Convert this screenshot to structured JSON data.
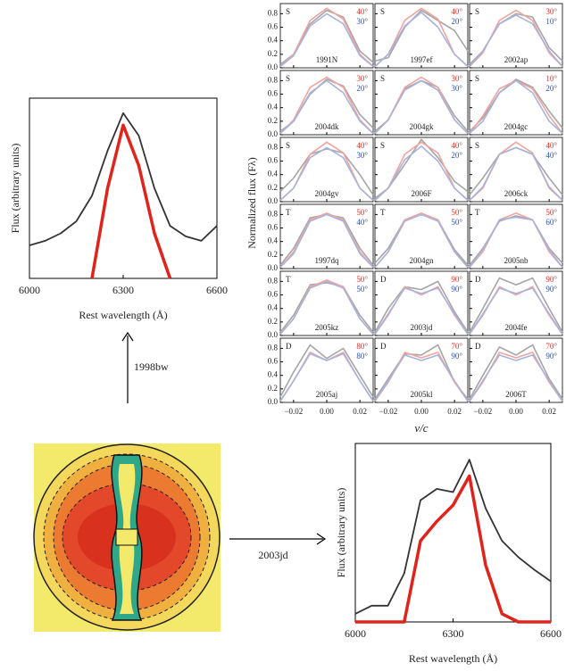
{
  "chart_data": [
    {
      "type": "line",
      "xlabel": "Rest wavelength (Å)",
      "ylabel": "Flux (arbitrary units)",
      "xlim": [
        6000,
        6600
      ],
      "xticks": [
        6000,
        6300,
        6600
      ],
      "ylim": [
        0,
        1.2
      ],
      "x": [
        6000,
        6050,
        6100,
        6150,
        6200,
        6250,
        6300,
        6350,
        6400,
        6450,
        6500,
        6550,
        6600
      ],
      "series": [
        {
          "color": "#333333",
          "values": [
            0.22,
            0.25,
            0.3,
            0.38,
            0.55,
            0.85,
            1.1,
            0.95,
            0.6,
            0.35,
            0.28,
            0.25,
            0.35
          ]
        },
        {
          "color": "#e0241c",
          "values": [
            null,
            null,
            null,
            null,
            0.0,
            0.6,
            1.02,
            0.75,
            0.3,
            0.0,
            null,
            null,
            null
          ]
        }
      ]
    },
    {
      "type": "small-multiples",
      "xlabel": "v/c",
      "ylabel": "Normalized flux (Fλ)",
      "xlim": [
        -0.028,
        0.028
      ],
      "xticks": [
        {
          "value": -0.02,
          "label": "−0.02"
        },
        {
          "value": 0,
          "label": "0.00"
        },
        {
          "value": 0.02,
          "label": "0.02"
        }
      ],
      "ylim": [
        0,
        0.95
      ],
      "yticks": [
        {
          "value": 0,
          "label": "0.0"
        },
        {
          "value": 0.2,
          "label": "0.2"
        },
        {
          "value": 0.4,
          "label": "0.4"
        },
        {
          "value": 0.6,
          "label": "0.6"
        },
        {
          "value": 0.8,
          "label": "0.8"
        }
      ],
      "x": [
        -0.028,
        -0.02,
        -0.01,
        0,
        0.01,
        0.02,
        0.028
      ],
      "series_colors": [
        "#a6a6a6",
        "#f2a49c",
        "#a8b2de"
      ],
      "angle_colors": [
        "#e0302a",
        "#2f4fb0"
      ],
      "panels": [
        {
          "type_label": "S",
          "angles": [
            "40°",
            "30°"
          ],
          "name": "1991N",
          "series": [
            [
              0.05,
              0.2,
              0.65,
              0.85,
              0.75,
              0.25,
              0.08
            ],
            [
              0.02,
              0.2,
              0.7,
              0.88,
              0.72,
              0.2,
              0.02
            ],
            [
              0.02,
              0.18,
              0.62,
              0.8,
              0.65,
              0.18,
              0.02
            ]
          ]
        },
        {
          "type_label": "S",
          "angles": [
            "40°",
            "20°"
          ],
          "name": "1997ef",
          "series": [
            [
              0.1,
              0.15,
              0.6,
              0.85,
              0.7,
              0.55,
              0.25
            ],
            [
              0.02,
              0.2,
              0.7,
              0.88,
              0.72,
              0.2,
              0.02
            ],
            [
              0.02,
              0.2,
              0.62,
              0.82,
              0.6,
              0.2,
              0.02
            ]
          ]
        },
        {
          "type_label": "S",
          "angles": [
            "30°",
            "10°"
          ],
          "name": "2002ap",
          "series": [
            [
              0.05,
              0.25,
              0.65,
              0.8,
              0.75,
              0.3,
              0.1
            ],
            [
              0.02,
              0.22,
              0.7,
              0.85,
              0.7,
              0.22,
              0.02
            ],
            [
              0.02,
              0.25,
              0.65,
              0.78,
              0.65,
              0.25,
              0.02
            ]
          ]
        },
        {
          "type_label": "S",
          "angles": [
            "30°",
            "20°"
          ],
          "name": "2004dk",
          "series": [
            [
              0.05,
              0.2,
              0.6,
              0.82,
              0.72,
              0.3,
              0.1
            ],
            [
              0.02,
              0.22,
              0.7,
              0.85,
              0.7,
              0.22,
              0.02
            ],
            [
              0.02,
              0.2,
              0.62,
              0.8,
              0.62,
              0.2,
              0.02
            ]
          ]
        },
        {
          "type_label": "S",
          "angles": [
            "30°",
            "30°"
          ],
          "name": "2004gk",
          "series": [
            [
              0.05,
              0.22,
              0.68,
              0.8,
              0.7,
              0.28,
              0.05
            ],
            [
              0.02,
              0.22,
              0.7,
              0.85,
              0.7,
              0.22,
              0.02
            ],
            [
              0.02,
              0.22,
              0.66,
              0.8,
              0.66,
              0.22,
              0.02
            ]
          ]
        },
        {
          "type_label": "S",
          "angles": [
            "10°",
            "20°"
          ],
          "name": "2004gc",
          "series": [
            [
              0.05,
              0.25,
              0.62,
              0.82,
              0.7,
              0.35,
              0.1
            ],
            [
              0.02,
              0.28,
              0.68,
              0.8,
              0.68,
              0.28,
              0.02
            ],
            [
              0.02,
              0.2,
              0.62,
              0.8,
              0.62,
              0.2,
              0.02
            ]
          ]
        },
        {
          "type_label": "S",
          "angles": [
            "40°",
            "30°"
          ],
          "name": "2004gv",
          "series": [
            [
              0.15,
              0.35,
              0.7,
              0.78,
              0.72,
              0.4,
              0.1
            ],
            [
              0.02,
              0.2,
              0.7,
              0.88,
              0.72,
              0.2,
              0.02
            ],
            [
              0.02,
              0.2,
              0.65,
              0.8,
              0.65,
              0.2,
              0.02
            ]
          ]
        },
        {
          "type_label": "S",
          "angles": [
            "40°",
            "20°"
          ],
          "name": "2006F",
          "series": [
            [
              0.05,
              0.2,
              0.55,
              0.92,
              0.65,
              0.3,
              0.15
            ],
            [
              0.02,
              0.2,
              0.7,
              0.88,
              0.72,
              0.2,
              0.02
            ],
            [
              0.02,
              0.2,
              0.62,
              0.82,
              0.6,
              0.2,
              0.02
            ]
          ]
        },
        {
          "type_label": "S",
          "angles": [
            "40°",
            "40°"
          ],
          "name": "2006ck",
          "series": [
            [
              0.1,
              0.35,
              0.7,
              0.8,
              0.7,
              0.35,
              0.1
            ],
            [
              0.02,
              0.2,
              0.7,
              0.88,
              0.72,
              0.2,
              0.02
            ],
            [
              0.02,
              0.22,
              0.7,
              0.8,
              0.7,
              0.22,
              0.02
            ]
          ]
        },
        {
          "type_label": "T",
          "angles": [
            "50°",
            "40°"
          ],
          "name": "1997dq",
          "series": [
            [
              0.05,
              0.3,
              0.75,
              0.8,
              0.75,
              0.3,
              0.05
            ],
            [
              0.02,
              0.25,
              0.72,
              0.82,
              0.72,
              0.25,
              0.02
            ],
            [
              0.02,
              0.22,
              0.7,
              0.8,
              0.7,
              0.22,
              0.02
            ]
          ]
        },
        {
          "type_label": "T",
          "angles": [
            "50°",
            "50°"
          ],
          "name": "2004gn",
          "series": [
            [
              0.08,
              0.3,
              0.72,
              0.8,
              0.72,
              0.28,
              0.05
            ],
            [
              0.02,
              0.25,
              0.72,
              0.82,
              0.72,
              0.25,
              0.02
            ],
            [
              0.02,
              0.25,
              0.7,
              0.8,
              0.7,
              0.25,
              0.02
            ]
          ]
        },
        {
          "type_label": "T",
          "angles": [
            "50°",
            "60°"
          ],
          "name": "2005nb",
          "series": [
            [
              0.05,
              0.3,
              0.7,
              0.78,
              0.72,
              0.3,
              0.08
            ],
            [
              0.02,
              0.25,
              0.72,
              0.82,
              0.72,
              0.25,
              0.02
            ],
            [
              0.02,
              0.28,
              0.72,
              0.76,
              0.72,
              0.28,
              0.02
            ]
          ]
        },
        {
          "type_label": "T",
          "angles": [
            "50°",
            "50°"
          ],
          "name": "2005kz",
          "series": [
            [
              0.05,
              0.3,
              0.75,
              0.78,
              0.72,
              0.3,
              0.05
            ],
            [
              0.02,
              0.25,
              0.72,
              0.82,
              0.72,
              0.25,
              0.02
            ],
            [
              0.02,
              0.25,
              0.7,
              0.8,
              0.7,
              0.25,
              0.02
            ]
          ]
        },
        {
          "type_label": "D",
          "angles": [
            "90°",
            "90°"
          ],
          "name": "2003jd",
          "series": [
            [
              0.05,
              0.4,
              0.72,
              0.68,
              0.8,
              0.35,
              0.05
            ],
            [
              0.02,
              0.3,
              0.72,
              0.6,
              0.72,
              0.3,
              0.02
            ],
            [
              0.02,
              0.32,
              0.7,
              0.62,
              0.7,
              0.32,
              0.02
            ]
          ]
        },
        {
          "type_label": "D",
          "angles": [
            "90°",
            "90°"
          ],
          "name": "2004fe",
          "series": [
            [
              0.05,
              0.4,
              0.85,
              0.75,
              0.85,
              0.4,
              0.05
            ],
            [
              0.02,
              0.3,
              0.72,
              0.6,
              0.72,
              0.3,
              0.02
            ],
            [
              0.02,
              0.32,
              0.7,
              0.62,
              0.7,
              0.32,
              0.02
            ]
          ]
        },
        {
          "type_label": "D",
          "angles": [
            "80°",
            "80°"
          ],
          "name": "2005aj",
          "series": [
            [
              0.08,
              0.45,
              0.85,
              0.65,
              0.8,
              0.4,
              0.08
            ],
            [
              0.02,
              0.32,
              0.74,
              0.62,
              0.74,
              0.32,
              0.02
            ],
            [
              0.02,
              0.32,
              0.72,
              0.62,
              0.72,
              0.32,
              0.02
            ]
          ]
        },
        {
          "type_label": "D",
          "angles": [
            "70°",
            "90°"
          ],
          "name": "2005kl",
          "series": [
            [
              0.05,
              0.35,
              0.72,
              0.7,
              0.85,
              0.3,
              0.05
            ],
            [
              0.02,
              0.3,
              0.74,
              0.66,
              0.74,
              0.3,
              0.02
            ],
            [
              0.02,
              0.32,
              0.7,
              0.62,
              0.7,
              0.32,
              0.02
            ]
          ]
        },
        {
          "type_label": "D",
          "angles": [
            "70°",
            "90°"
          ],
          "name": "2006T",
          "series": [
            [
              0.05,
              0.4,
              0.82,
              0.7,
              0.85,
              0.35,
              0.05
            ],
            [
              0.02,
              0.3,
              0.74,
              0.66,
              0.74,
              0.3,
              0.02
            ],
            [
              0.02,
              0.32,
              0.7,
              0.62,
              0.7,
              0.32,
              0.02
            ]
          ]
        }
      ]
    },
    {
      "type": "line",
      "xlabel": "Rest wavelength (Å)",
      "ylabel": "Flux (arbitrary units)",
      "xlim": [
        6000,
        6600
      ],
      "xticks": [
        6000,
        6300,
        6600
      ],
      "ylim": [
        0,
        1.1
      ],
      "x": [
        6000,
        6050,
        6100,
        6150,
        6200,
        6250,
        6300,
        6350,
        6400,
        6450,
        6500,
        6550,
        6600
      ],
      "series": [
        {
          "color": "#333333",
          "values": [
            0.05,
            0.1,
            0.1,
            0.3,
            0.75,
            0.82,
            0.8,
            1.0,
            0.7,
            0.5,
            0.4,
            0.32,
            0.25
          ]
        },
        {
          "color": "#e0241c",
          "values": [
            0,
            0,
            0,
            0,
            0.5,
            0.62,
            0.72,
            0.9,
            0.35,
            0.05,
            0,
            0,
            0
          ]
        }
      ]
    }
  ],
  "diagram": {
    "arrow_labels": [
      "1998bw",
      "2003jd"
    ]
  }
}
